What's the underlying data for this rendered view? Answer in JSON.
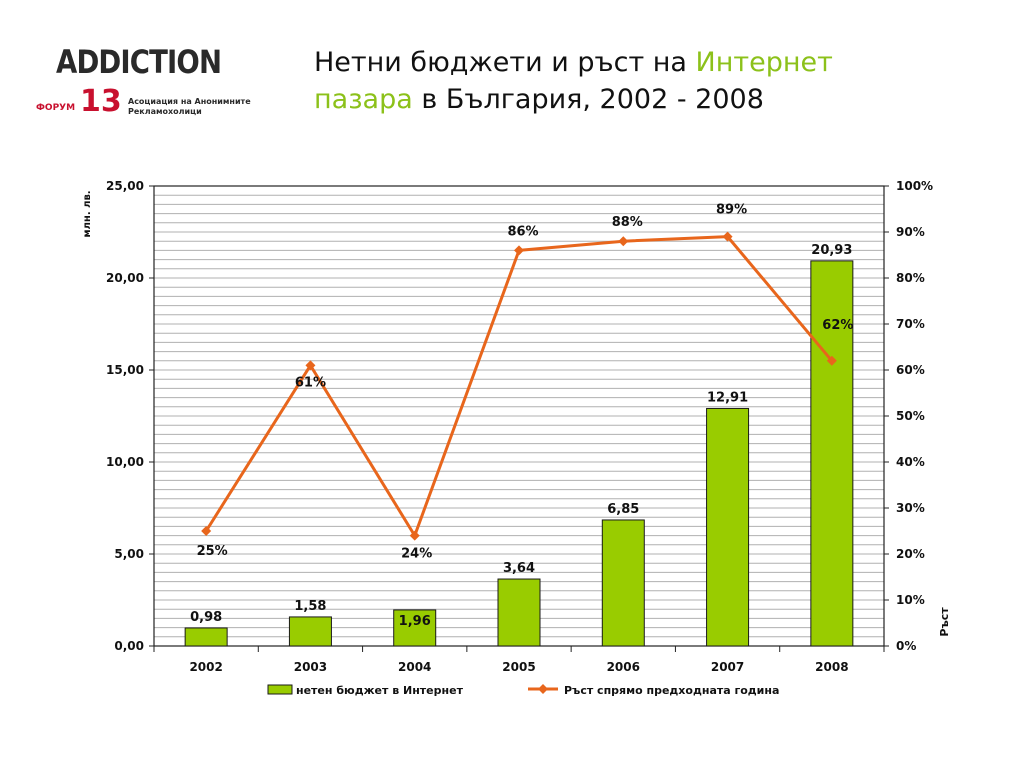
{
  "logo": {
    "name": "ADDICTION",
    "forum": "ФОРУМ",
    "number": "13",
    "subtitle_line1": "Асоциация на Анонимните",
    "subtitle_line2": "Рекламохолици"
  },
  "title": {
    "part1": "Нетни бюджети и ръст на ",
    "highlight1": "Интернет",
    "highlight2": "пазара",
    "part2": " в България, 2002 - 2008"
  },
  "colors": {
    "bar_fill": "#99cc00",
    "bar_stroke": "#1a1a1a",
    "line": "#e8661c",
    "title_highlight": "#8cc11a",
    "grid": "#b0b0b0"
  },
  "chart_data": {
    "type": "bar",
    "categories": [
      "2002",
      "2003",
      "2004",
      "2005",
      "2006",
      "2007",
      "2008"
    ],
    "series": [
      {
        "name": "нетен бюджет в Интернет",
        "type": "bar",
        "axis": "left",
        "values": [
          0.98,
          1.58,
          1.96,
          3.64,
          6.85,
          12.91,
          20.93
        ],
        "labels": [
          "0,98",
          "1,58",
          "1,96",
          "3,64",
          "6,85",
          "12,91",
          "20,93"
        ]
      },
      {
        "name": "Ръст спрямо предходната година",
        "type": "line",
        "axis": "right",
        "values": [
          25,
          61,
          24,
          86,
          88,
          89,
          62
        ],
        "labels": [
          "25%",
          "61%",
          "24%",
          "86%",
          "88%",
          "89%",
          "62%"
        ]
      }
    ],
    "ylabel": "млн. лв.",
    "ylabel_right": "Ръст",
    "ylim": [
      0,
      25
    ],
    "ylim_right": [
      0,
      100
    ],
    "y_ticks": [
      "0,00",
      "5,00",
      "10,00",
      "15,00",
      "20,00",
      "25,00"
    ],
    "y_ticks_right": [
      "0%",
      "10%",
      "20%",
      "30%",
      "40%",
      "50%",
      "60%",
      "70%",
      "80%",
      "90%",
      "100%"
    ],
    "grid": true,
    "legend_position": "bottom"
  }
}
